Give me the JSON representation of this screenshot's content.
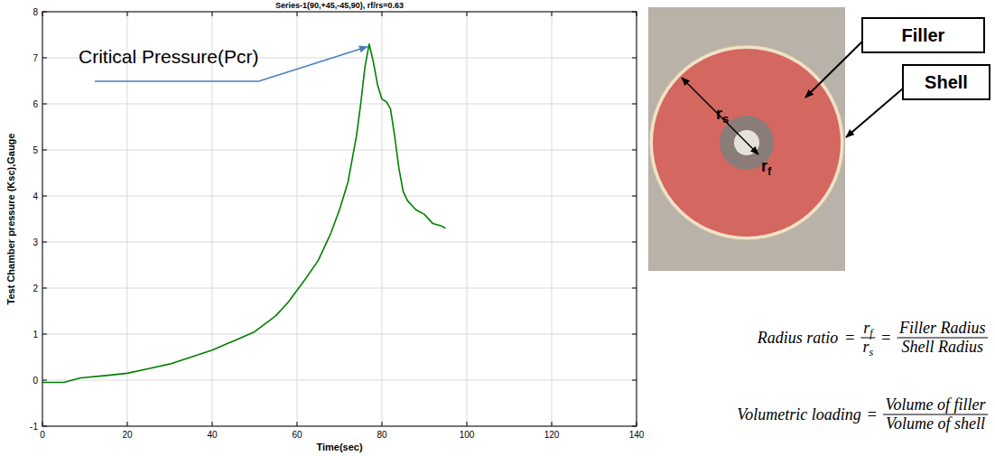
{
  "chart_data": {
    "type": "line",
    "title": "Series-1(90,+45,-45,90), rf/rs=0.63",
    "x_label": "Time(sec)",
    "y_label": "Test Chamber pressure (Ksc),Gauge",
    "x": [
      0,
      5,
      9,
      15,
      20,
      25,
      30,
      35,
      40,
      45,
      50,
      55,
      58,
      60,
      62,
      65,
      68,
      70,
      72,
      74,
      75,
      76,
      77,
      78,
      79,
      80,
      81,
      82,
      83,
      84,
      85,
      86,
      88,
      90,
      92,
      94,
      95
    ],
    "series": [
      {
        "color": "#008000",
        "values": [
          -0.05,
          -0.05,
          0.05,
          0.1,
          0.15,
          0.25,
          0.35,
          0.5,
          0.65,
          0.85,
          1.05,
          1.4,
          1.7,
          1.95,
          2.2,
          2.6,
          3.2,
          3.7,
          4.3,
          5.3,
          6,
          6.8,
          7.3,
          6.9,
          6.4,
          6.1,
          6.05,
          5.9,
          5.3,
          4.6,
          4.1,
          3.9,
          3.7,
          3.6,
          3.4,
          3.35,
          3.3
        ]
      }
    ],
    "xlim": [
      0,
      140
    ],
    "xticks": [
      0,
      20,
      40,
      60,
      80,
      100,
      120,
      140
    ],
    "ylim": [
      -1,
      8
    ],
    "yticks": [
      -1,
      0,
      1,
      2,
      3,
      4,
      5,
      6,
      7,
      8
    ],
    "grid": true,
    "annotations": [
      {
        "text": "Critical Pressure(Pcr)",
        "x": 77,
        "y": 7.3
      }
    ]
  },
  "cross_section": {
    "callouts": [
      "Filler",
      "Shell"
    ],
    "radii": [
      {
        "text": "r",
        "sub": "s"
      },
      {
        "text": "r",
        "sub": "f"
      }
    ],
    "formulas": [
      {
        "lhs": "Radius ratio",
        "operator": "=",
        "terms": [
          {
            "num": {
              "text": "r",
              "sub": "f"
            },
            "den": {
              "text": "r",
              "sub": "s"
            }
          },
          {
            "num": {
              "text": "Filler Radius"
            },
            "den": {
              "text": "Shell Radius"
            }
          }
        ]
      },
      {
        "lhs": "Volumetric loading",
        "operator": "=",
        "terms": [
          {
            "num": {
              "text": "Volume of filler"
            },
            "den": {
              "text": "Volume of shell"
            }
          }
        ]
      }
    ]
  }
}
